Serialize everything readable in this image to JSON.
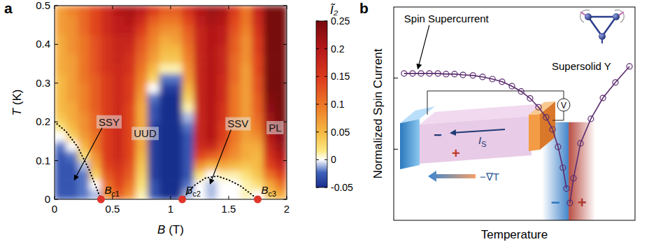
{
  "chart_data": [
    {
      "type": "heatmap",
      "panel_label": "a",
      "x_label": "B (T)",
      "y_label": "T (K)",
      "xlim": [
        0,
        2
      ],
      "ylim": [
        0,
        0.5
      ],
      "xticks": [
        0,
        0.5,
        1,
        1.5,
        2
      ],
      "yticks": [
        0,
        0.1,
        0.2,
        0.3,
        0.4,
        0.5
      ],
      "x": [
        0.05,
        0.15,
        0.25,
        0.35,
        0.45,
        0.55,
        0.65,
        0.75,
        0.85,
        0.95,
        1.05,
        1.15,
        1.25,
        1.35,
        1.45,
        1.55,
        1.65,
        1.75,
        1.85,
        1.95
      ],
      "y": [
        0.0125,
        0.0375,
        0.0625,
        0.0875,
        0.1125,
        0.1375,
        0.1625,
        0.1875,
        0.2125,
        0.2375,
        0.2625,
        0.2875,
        0.3125,
        0.3375,
        0.3625,
        0.3875,
        0.4125,
        0.4375,
        0.4625,
        0.4875
      ],
      "values": [
        [
          -0.03,
          -0.03,
          -0.02,
          -0.01,
          0.08,
          0.12,
          0.08,
          0.01,
          -0.03,
          -0.05,
          -0.05,
          -0.01,
          0,
          -0.01,
          0,
          0,
          0.01,
          0,
          0.04,
          0.06
        ],
        [
          -0.03,
          -0.03,
          -0.02,
          0,
          0.1,
          0.14,
          0.1,
          0.02,
          -0.03,
          -0.05,
          -0.05,
          -0.02,
          0,
          -0.01,
          0,
          0,
          0.01,
          0.02,
          0.06,
          0.1
        ],
        [
          -0.03,
          -0.03,
          -0.02,
          0.03,
          0.12,
          0.15,
          0.12,
          0.03,
          -0.04,
          -0.05,
          -0.05,
          -0.03,
          0.02,
          0,
          0.01,
          0.01,
          0.02,
          0.04,
          0.1,
          0.14
        ],
        [
          -0.03,
          -0.03,
          -0.01,
          0.06,
          0.14,
          0.16,
          0.13,
          0.04,
          -0.04,
          -0.05,
          -0.05,
          -0.03,
          0.08,
          0.05,
          0.06,
          0.05,
          0.04,
          0.05,
          0.14,
          0.18
        ],
        [
          -0.03,
          -0.02,
          0.02,
          0.08,
          0.15,
          0.17,
          0.14,
          0.05,
          -0.04,
          -0.05,
          -0.05,
          -0.03,
          0.14,
          0.12,
          0.1,
          0.08,
          0.06,
          0.05,
          0.16,
          0.2
        ],
        [
          -0.02,
          0,
          0.05,
          0.1,
          0.15,
          0.17,
          0.14,
          0.06,
          -0.04,
          -0.05,
          -0.05,
          -0.03,
          0.17,
          0.18,
          0.13,
          0.09,
          0.06,
          0.06,
          0.18,
          0.22
        ],
        [
          0,
          0.03,
          0.07,
          0.1,
          0.15,
          0.17,
          0.14,
          0.06,
          -0.04,
          -0.05,
          -0.05,
          -0.03,
          0.18,
          0.2,
          0.15,
          0.1,
          0.07,
          0.08,
          0.2,
          0.23
        ],
        [
          0.02,
          0.05,
          0.08,
          0.11,
          0.15,
          0.17,
          0.14,
          0.06,
          -0.04,
          -0.05,
          -0.05,
          -0.02,
          0.18,
          0.2,
          0.15,
          0.1,
          0.07,
          0.1,
          0.21,
          0.24
        ],
        [
          0.04,
          0.06,
          0.08,
          0.11,
          0.15,
          0.17,
          0.14,
          0.06,
          -0.03,
          -0.05,
          -0.05,
          -0.01,
          0.18,
          0.2,
          0.16,
          0.1,
          0.07,
          0.11,
          0.22,
          0.25
        ],
        [
          0.05,
          0.06,
          0.09,
          0.12,
          0.15,
          0.17,
          0.14,
          0.06,
          -0.03,
          -0.05,
          -0.05,
          0.01,
          0.18,
          0.2,
          0.16,
          0.1,
          0.07,
          0.12,
          0.23,
          0.25
        ],
        [
          0.05,
          0.07,
          0.09,
          0.12,
          0.15,
          0.17,
          0.15,
          0.07,
          -0.02,
          -0.05,
          -0.05,
          0.03,
          0.18,
          0.2,
          0.17,
          0.1,
          0.07,
          0.12,
          0.24,
          0.25
        ],
        [
          0.05,
          0.07,
          0.09,
          0.12,
          0.15,
          0.17,
          0.15,
          0.08,
          0,
          -0.04,
          -0.04,
          0.05,
          0.18,
          0.2,
          0.17,
          0.1,
          0.07,
          0.13,
          0.25,
          0.25
        ],
        [
          0.05,
          0.07,
          0.1,
          0.12,
          0.15,
          0.17,
          0.15,
          0.09,
          0.03,
          -0.02,
          -0.02,
          0.07,
          0.18,
          0.2,
          0.17,
          0.11,
          0.07,
          0.13,
          0.25,
          0.25
        ],
        [
          0.06,
          0.07,
          0.1,
          0.13,
          0.16,
          0.17,
          0.16,
          0.1,
          0.05,
          0.01,
          0.01,
          0.08,
          0.18,
          0.2,
          0.18,
          0.11,
          0.07,
          0.14,
          0.25,
          0.25
        ],
        [
          0.06,
          0.07,
          0.1,
          0.13,
          0.16,
          0.18,
          0.16,
          0.11,
          0.07,
          0.04,
          0.04,
          0.09,
          0.18,
          0.2,
          0.18,
          0.11,
          0.08,
          0.14,
          0.25,
          0.25
        ],
        [
          0.06,
          0.08,
          0.1,
          0.13,
          0.16,
          0.18,
          0.17,
          0.12,
          0.08,
          0.05,
          0.05,
          0.1,
          0.18,
          0.2,
          0.18,
          0.12,
          0.08,
          0.15,
          0.25,
          0.25
        ],
        [
          0.06,
          0.08,
          0.1,
          0.13,
          0.16,
          0.18,
          0.18,
          0.13,
          0.09,
          0.06,
          0.07,
          0.11,
          0.18,
          0.2,
          0.19,
          0.12,
          0.08,
          0.15,
          0.25,
          0.25
        ],
        [
          0.07,
          0.08,
          0.11,
          0.14,
          0.17,
          0.19,
          0.19,
          0.15,
          0.1,
          0.08,
          0.08,
          0.12,
          0.18,
          0.2,
          0.19,
          0.13,
          0.09,
          0.16,
          0.25,
          0.25
        ],
        [
          0.07,
          0.08,
          0.11,
          0.14,
          0.17,
          0.19,
          0.2,
          0.17,
          0.12,
          0.1,
          0.1,
          0.14,
          0.19,
          0.21,
          0.2,
          0.14,
          0.1,
          0.17,
          0.25,
          0.25
        ],
        [
          0.07,
          0.09,
          0.11,
          0.14,
          0.17,
          0.2,
          0.21,
          0.19,
          0.15,
          0.12,
          0.12,
          0.16,
          0.2,
          0.22,
          0.21,
          0.15,
          0.1,
          0.18,
          0.25,
          0.25
        ]
      ],
      "colorbar": {
        "label": "Ĩ₂",
        "range": [
          -0.05,
          0.25
        ],
        "ticks": [
          -0.05,
          0,
          0.05,
          0.1,
          0.15,
          0.2,
          0.25
        ]
      },
      "phase_labels": [
        {
          "text": "SSY",
          "x": 0.47,
          "y": 0.2,
          "arrow_to": [
            0.17,
            0.05
          ]
        },
        {
          "text": "UUD",
          "x": 0.78,
          "y": 0.17
        },
        {
          "text": "SSV",
          "x": 1.58,
          "y": 0.195,
          "arrow_to": [
            1.34,
            0.04
          ]
        },
        {
          "text": "PL",
          "x": 1.9,
          "y": 0.185
        }
      ],
      "boundaries": [
        {
          "x": [
            0,
            0.1,
            0.2,
            0.3,
            0.4
          ],
          "values": [
            0.2,
            0.175,
            0.135,
            0.075,
            0
          ],
          "line_style": "dotted"
        },
        {
          "x": [
            1.1,
            1.2,
            1.3,
            1.4,
            1.5,
            1.6,
            1.7,
            1.75
          ],
          "values": [
            0,
            0.035,
            0.055,
            0.06,
            0.05,
            0.035,
            0.012,
            0
          ],
          "line_style": "dotted"
        }
      ],
      "critical_fields": {
        "labels": [
          "Bc1",
          "Bc2",
          "Bc3"
        ],
        "values": [
          0.4,
          1.1,
          1.75
        ],
        "color": "#e0352b"
      }
    },
    {
      "type": "line",
      "panel_label": "b",
      "x_label": "Temperature",
      "y_label": "Normalized Spin Current",
      "xlim": [
        0,
        1
      ],
      "ylim": [
        0.01,
        10
      ],
      "yticks": [
        0.1,
        1
      ],
      "log": "y",
      "tick_labels": false,
      "series": [
        {
          "x": [
            0.043,
            0.078,
            0.113,
            0.148,
            0.183,
            0.217,
            0.252,
            0.287,
            0.328,
            0.368,
            0.409,
            0.449,
            0.49,
            0.528,
            0.565,
            0.6,
            0.632,
            0.658,
            0.681,
            0.701,
            0.716
          ],
          "values": [
            1.16,
            1.16,
            1.16,
            1.16,
            1.16,
            1.14,
            1.14,
            1.11,
            1.09,
            1.04,
            0.97,
            0.89,
            0.77,
            0.65,
            0.52,
            0.39,
            0.28,
            0.19,
            0.108,
            0.055,
            0.028
          ],
          "color": "#5b2c6f",
          "marker": "circle"
        },
        {
          "x": [
            0.73,
            0.745,
            0.774,
            0.817,
            0.867,
            0.919,
            0.977
          ],
          "values": [
            0.0176,
            0.039,
            0.121,
            0.267,
            0.526,
            0.87,
            1.46
          ],
          "color": "#5b2c6f",
          "marker": "circle"
        }
      ],
      "regions": [
        {
          "label": "−",
          "x": [
            0.615,
            0.725
          ],
          "y": [
            0.01,
            0.24
          ],
          "color": "#2f78c4"
        },
        {
          "label": "+",
          "x": [
            0.725,
            0.835
          ],
          "y": [
            0.01,
            0.24
          ],
          "color": "#b03a2e"
        }
      ],
      "annotations": [
        {
          "text": "Spin Supercurrent",
          "x": 0.043,
          "y": 6.1,
          "arrow_to": [
            0.1,
            1.35
          ]
        },
        {
          "text": "Supersolid Y",
          "x": 0.655,
          "y": 1.3
        }
      ],
      "inset": {
        "current_label": "IS",
        "voltage_label": "V",
        "gradient_label": "−∇T",
        "signs": [
          "−",
          "+"
        ]
      }
    }
  ]
}
